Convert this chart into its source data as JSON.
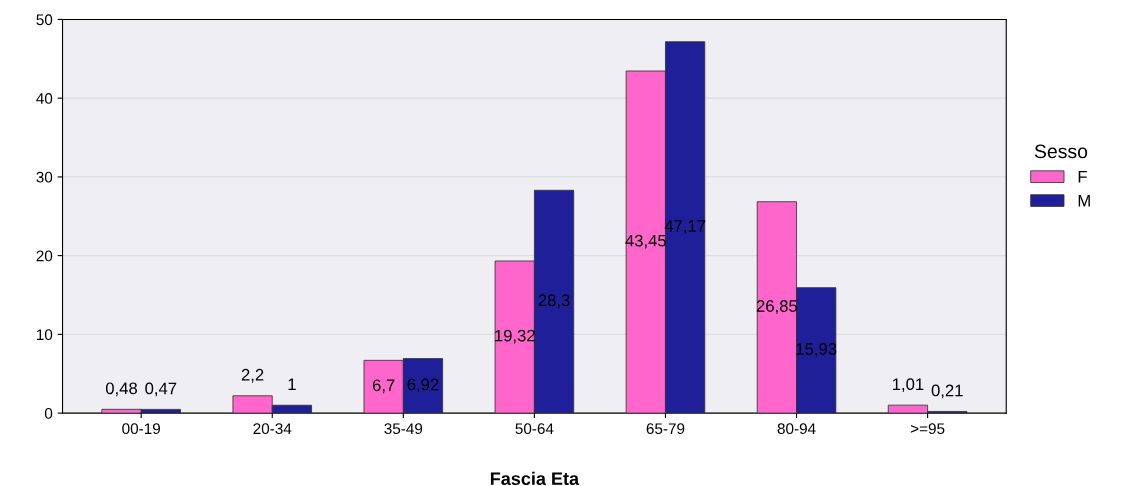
{
  "chart_data": {
    "type": "bar",
    "xlabel": "Fascia Eta",
    "legend_title": "Sesso",
    "legend": "right",
    "grid": "y",
    "categories": [
      "00-19",
      "20-34",
      "35-49",
      "50-64",
      "65-79",
      "80-94",
      ">=95"
    ],
    "ylim": [
      0,
      50
    ],
    "yticks": [
      0,
      10,
      20,
      30,
      40,
      50
    ],
    "series": [
      {
        "name": "F",
        "color": "#ff66cc",
        "values": [
          0.48,
          2.2,
          6.7,
          19.32,
          43.45,
          26.85,
          1.01
        ],
        "value_labels": [
          "0,48",
          "2,2",
          "6,7",
          "19,32",
          "43,45",
          "26,85",
          "1,01"
        ]
      },
      {
        "name": "M",
        "color": "#1f1f99",
        "values": [
          0.47,
          1,
          6.92,
          28.3,
          47.17,
          15.93,
          0.21
        ],
        "value_labels": [
          "0,47",
          "1",
          "6,92",
          "28,3",
          "47,17",
          "15,93",
          "0,21"
        ]
      }
    ]
  }
}
